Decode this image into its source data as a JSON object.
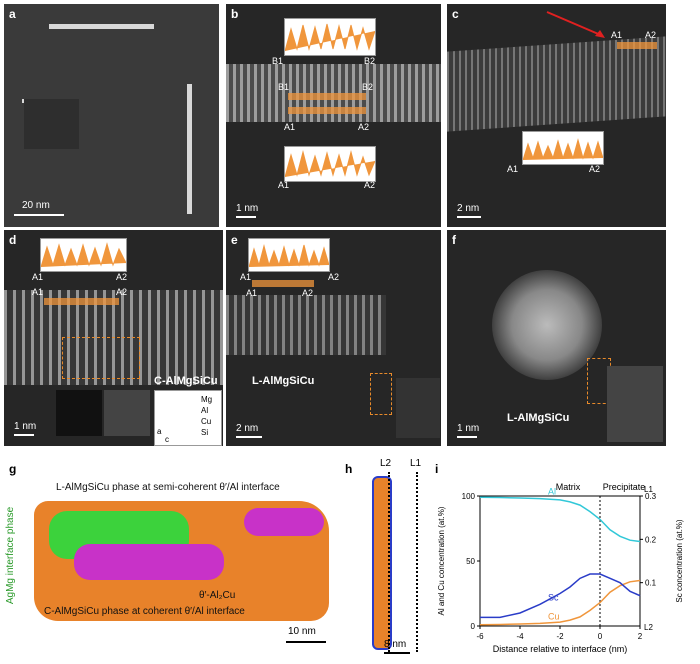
{
  "panels": {
    "a": {
      "label": "a",
      "scale": "20 nm"
    },
    "b": {
      "label": "b",
      "scale": "1 nm",
      "top_profile": [
        "B1",
        "B2"
      ],
      "band1": [
        "B1",
        "B2"
      ],
      "band2": [
        "A1",
        "A2"
      ],
      "bottom_profile": [
        "A1",
        "A2"
      ]
    },
    "c": {
      "label": "c",
      "scale": "2 nm",
      "band": [
        "A1",
        "A2"
      ],
      "profile": [
        "A1",
        "A2"
      ]
    },
    "d": {
      "label": "d",
      "scale": "1 nm",
      "profile": [
        "A1",
        "A2"
      ],
      "band": [
        "A1",
        "A2"
      ],
      "phase": "C-AlMgSiCu",
      "legend": [
        "Mg",
        "Al",
        "Cu",
        "Si"
      ],
      "axes": [
        "a",
        "c"
      ]
    },
    "e": {
      "label": "e",
      "scale": "2 nm",
      "profile": [
        "A1",
        "A2"
      ],
      "band": [
        "A1",
        "A2"
      ],
      "phase": "L-AlMgSiCu"
    },
    "f": {
      "label": "f",
      "scale": "1 nm",
      "phase": "L-AlMgSiCu"
    },
    "g": {
      "label": "g",
      "top_note": "L-AlMgSiCu phase at semi-coherent θ′/Al interface",
      "side_note": "AgMg interface phase",
      "mid_note": "θ′-Al₂Cu",
      "bottom_note": "C-AlMgSiCu phase at coherent θ′/Al interface",
      "scale": "10 nm"
    },
    "h": {
      "label": "h",
      "line_labels": [
        "L2",
        "L1"
      ],
      "scale": "8 nm"
    },
    "i": {
      "label": "i"
    }
  },
  "chart_data": {
    "type": "line",
    "title": "",
    "xlabel": "Distance relative to interface (nm)",
    "ylabel": "Al and Cu concentration (at.%)",
    "y2label": "Sc concentration (at.%)",
    "xlim": [
      -6,
      2
    ],
    "ylim": [
      0,
      100
    ],
    "y2lim": [
      0,
      0.3
    ],
    "xticks": [
      -6,
      -4,
      -2,
      0,
      2
    ],
    "yticks": [
      0,
      50,
      100
    ],
    "y2ticks": [
      0.1,
      0.2,
      0.3
    ],
    "region_labels": [
      "Matrix",
      "Precipitate"
    ],
    "corner_labels": [
      "L1",
      "L2"
    ],
    "series": [
      {
        "name": "Al",
        "color": "#32c8d8",
        "axis": "left",
        "x": [
          -6,
          -5,
          -4,
          -3,
          -2,
          -1.5,
          -1,
          -0.5,
          0,
          0.5,
          1,
          1.5,
          2
        ],
        "y": [
          99,
          98.8,
          98.5,
          98,
          97,
          95.5,
          93,
          88,
          82,
          74,
          69,
          66,
          65
        ]
      },
      {
        "name": "Cu",
        "color": "#f0963c",
        "axis": "left",
        "x": [
          -6,
          -5,
          -4,
          -3,
          -2,
          -1.5,
          -1,
          -0.5,
          0,
          0.5,
          1,
          1.5,
          2
        ],
        "y": [
          1,
          1.2,
          1.5,
          2,
          3,
          4.5,
          7,
          12,
          18,
          26,
          31,
          34,
          35
        ]
      },
      {
        "name": "Sc",
        "color": "#2a3cc8",
        "axis": "right",
        "x": [
          -6,
          -5,
          -4,
          -3,
          -2,
          -1.5,
          -1,
          -0.5,
          0,
          0.5,
          1,
          1.5,
          2
        ],
        "y": [
          0.02,
          0.02,
          0.03,
          0.05,
          0.075,
          0.09,
          0.11,
          0.12,
          0.12,
          0.11,
          0.1,
          0.08,
          0.07
        ]
      }
    ]
  },
  "colors": {
    "profile": "#f0963c",
    "al": "#32c8d8",
    "cu": "#f0963c",
    "sc": "#2a3cc8",
    "green": "#3cd23c",
    "magenta": "#c832c8",
    "orange": "#e88a2a"
  }
}
